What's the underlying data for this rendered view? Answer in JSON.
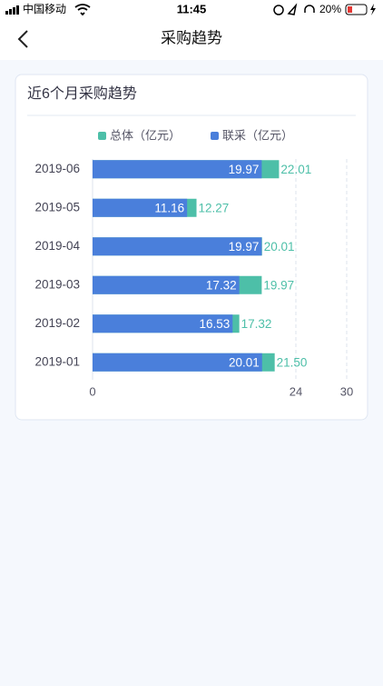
{
  "status": {
    "carrier": "中国移动",
    "time": "11:45",
    "battery": "20%"
  },
  "nav": {
    "title": "采购趋势"
  },
  "card": {
    "title": "近6个月采购趋势"
  },
  "chart_data": {
    "type": "bar",
    "orientation": "horizontal",
    "overlap": true,
    "categories": [
      "2019-06",
      "2019-05",
      "2019-04",
      "2019-03",
      "2019-02",
      "2019-01"
    ],
    "series": [
      {
        "name": "总体（亿元）",
        "color": "#4dbfa8",
        "values": [
          22.01,
          12.27,
          20.01,
          19.97,
          17.32,
          21.5
        ],
        "value_labels": [
          "22.01",
          "12.27",
          "20.01",
          "19.97",
          "17.32",
          "21.50"
        ]
      },
      {
        "name": "联采（亿元）",
        "color": "#4a7fdb",
        "values": [
          19.97,
          11.16,
          19.97,
          17.32,
          16.53,
          20.01
        ]
      }
    ],
    "xlim": [
      0,
      30
    ],
    "xticks": [
      0,
      24,
      30
    ],
    "grid": true,
    "legend": "top"
  }
}
